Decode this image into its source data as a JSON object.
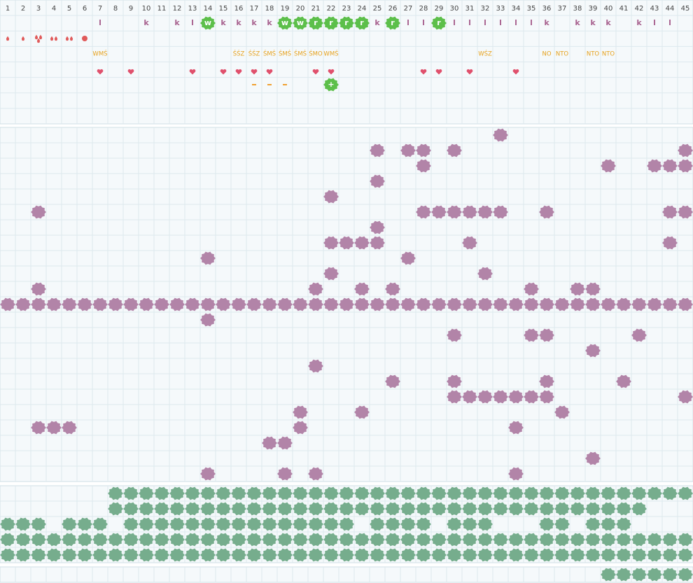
{
  "columns": [
    1,
    2,
    3,
    4,
    5,
    6,
    7,
    8,
    9,
    10,
    11,
    12,
    13,
    14,
    15,
    16,
    17,
    18,
    19,
    20,
    21,
    22,
    23,
    24,
    25,
    26,
    27,
    28,
    29,
    30,
    31,
    32,
    33,
    34,
    35,
    36,
    37,
    38,
    39,
    40,
    41,
    42,
    43,
    44,
    45
  ],
  "top": {
    "letters": [
      {
        "column": 7,
        "text": "l"
      },
      {
        "column": 10,
        "text": "k"
      },
      {
        "column": 12,
        "text": "k"
      },
      {
        "column": 13,
        "text": "l"
      },
      {
        "column": 14,
        "text": "w",
        "badge": true
      },
      {
        "column": 15,
        "text": "k"
      },
      {
        "column": 16,
        "text": "k"
      },
      {
        "column": 17,
        "text": "k"
      },
      {
        "column": 18,
        "text": "k"
      },
      {
        "column": 19,
        "text": "w",
        "badge": true
      },
      {
        "column": 20,
        "text": "w",
        "badge": true
      },
      {
        "column": 21,
        "text": "r",
        "badge": true
      },
      {
        "column": 22,
        "text": "r",
        "badge": true
      },
      {
        "column": 23,
        "text": "r",
        "badge": true
      },
      {
        "column": 24,
        "text": "r",
        "badge": true
      },
      {
        "column": 25,
        "text": "k"
      },
      {
        "column": 26,
        "text": "r",
        "badge": true
      },
      {
        "column": 27,
        "text": "l"
      },
      {
        "column": 28,
        "text": "l"
      },
      {
        "column": 29,
        "text": "r",
        "badge": true
      },
      {
        "column": 30,
        "text": "l"
      },
      {
        "column": 31,
        "text": "l"
      },
      {
        "column": 32,
        "text": "l"
      },
      {
        "column": 33,
        "text": "l"
      },
      {
        "column": 34,
        "text": "l"
      },
      {
        "column": 35,
        "text": "l"
      },
      {
        "column": 36,
        "text": "k"
      },
      {
        "column": 38,
        "text": "k"
      },
      {
        "column": 39,
        "text": "k"
      },
      {
        "column": 40,
        "text": "k"
      },
      {
        "column": 42,
        "text": "k"
      },
      {
        "column": 43,
        "text": "l"
      },
      {
        "column": 44,
        "text": "l"
      }
    ],
    "drops": [
      {
        "column": 1,
        "count": 1
      },
      {
        "column": 2,
        "count": 1
      },
      {
        "column": 3,
        "count": 3
      },
      {
        "column": 4,
        "count": 2
      },
      {
        "column": 5,
        "count": 2
      },
      {
        "column": 6,
        "count": 1,
        "shape": "dot"
      }
    ],
    "codes": [
      {
        "column": 7,
        "text": "WMŚ"
      },
      {
        "column": 16,
        "text": "ŚŚZ"
      },
      {
        "column": 17,
        "text": "ŚŚZ"
      },
      {
        "column": 18,
        "text": "ŚMŚ"
      },
      {
        "column": 19,
        "text": "ŚMŚ"
      },
      {
        "column": 20,
        "text": "ŚMŚ"
      },
      {
        "column": 21,
        "text": "ŚMO"
      },
      {
        "column": 22,
        "text": "WMŚ"
      },
      {
        "column": 32,
        "text": "WŚZ"
      },
      {
        "column": 36,
        "text": "NO"
      },
      {
        "column": 37,
        "text": "NTO"
      },
      {
        "column": 39,
        "text": "NTO"
      },
      {
        "column": 40,
        "text": "NTO"
      }
    ],
    "hearts": [
      7,
      9,
      13,
      15,
      16,
      17,
      18,
      21,
      22,
      28,
      29,
      31,
      34
    ],
    "dashes": [
      17,
      18,
      19
    ],
    "plus": {
      "column": 22,
      "text": "+"
    }
  },
  "middle": {
    "rows": [
      [
        33
      ],
      [
        25,
        27,
        28,
        30,
        45
      ],
      [
        28,
        40,
        43,
        44,
        45
      ],
      [
        25
      ],
      [
        22
      ],
      [
        3,
        28,
        29,
        30,
        31,
        32,
        33,
        36,
        44,
        45
      ],
      [
        25
      ],
      [
        22,
        23,
        24,
        25,
        31,
        44
      ],
      [
        14,
        27
      ],
      [
        22,
        32
      ],
      [
        3,
        21,
        24,
        26,
        35,
        38,
        39
      ],
      [
        1,
        2,
        3,
        4,
        5,
        6,
        7,
        8,
        9,
        10,
        11,
        12,
        13,
        14,
        15,
        16,
        17,
        18,
        19,
        20,
        21,
        22,
        23,
        24,
        25,
        26,
        27,
        28,
        29,
        30,
        31,
        32,
        33,
        34,
        35,
        36,
        37,
        38,
        39,
        40,
        41,
        42,
        43,
        44,
        45
      ],
      [
        14
      ],
      [
        30,
        35,
        36,
        42
      ],
      [
        39
      ],
      [
        21
      ],
      [
        26,
        30,
        36,
        41
      ],
      [
        30,
        31,
        32,
        33,
        34,
        35,
        36,
        45
      ],
      [
        20,
        24,
        37
      ],
      [
        3,
        4,
        5,
        20,
        34
      ],
      [
        18,
        19
      ],
      [
        39
      ],
      [
        14,
        19,
        21,
        34
      ]
    ]
  },
  "bottom": {
    "rows": [
      [
        8,
        9,
        10,
        11,
        12,
        13,
        14,
        15,
        16,
        17,
        18,
        19,
        20,
        21,
        22,
        23,
        24,
        25,
        26,
        27,
        28,
        29,
        30,
        31,
        32,
        33,
        34,
        35,
        36,
        37,
        38,
        39,
        40,
        41,
        42,
        43,
        44,
        45
      ],
      [
        8,
        9,
        10,
        11,
        12,
        13,
        14,
        15,
        16,
        17,
        18,
        19,
        20,
        21,
        22,
        23,
        24,
        25,
        26,
        27,
        28,
        29,
        30,
        31,
        32,
        33,
        34,
        35,
        36,
        37,
        38,
        39,
        40,
        41,
        42
      ],
      [
        1,
        2,
        3,
        5,
        6,
        7,
        9,
        10,
        11,
        12,
        13,
        14,
        15,
        16,
        17,
        18,
        19,
        20,
        21,
        22,
        23,
        25,
        26,
        27,
        28,
        30,
        31,
        32,
        36,
        37,
        39,
        40,
        41
      ],
      [
        1,
        2,
        3,
        4,
        5,
        6,
        7,
        8,
        9,
        10,
        11,
        12,
        13,
        14,
        15,
        16,
        17,
        18,
        19,
        20,
        21,
        22,
        23,
        24,
        25,
        26,
        27,
        28,
        29,
        30,
        31,
        32,
        33,
        34,
        35,
        36,
        37,
        38,
        39,
        40,
        41,
        42,
        43,
        44,
        45
      ],
      [
        1,
        2,
        3,
        4,
        5,
        6,
        7,
        8,
        9,
        10,
        11,
        12,
        13,
        14,
        15,
        16,
        17,
        18,
        19,
        20,
        21,
        22,
        23,
        24,
        25,
        26,
        27,
        28,
        29,
        30,
        31,
        32,
        33,
        34,
        35,
        36,
        37,
        38,
        39,
        40,
        41,
        42,
        43,
        44,
        45
      ]
    ]
  },
  "footer": {
    "cells": [
      40,
      41,
      42,
      43,
      44,
      45
    ]
  }
}
